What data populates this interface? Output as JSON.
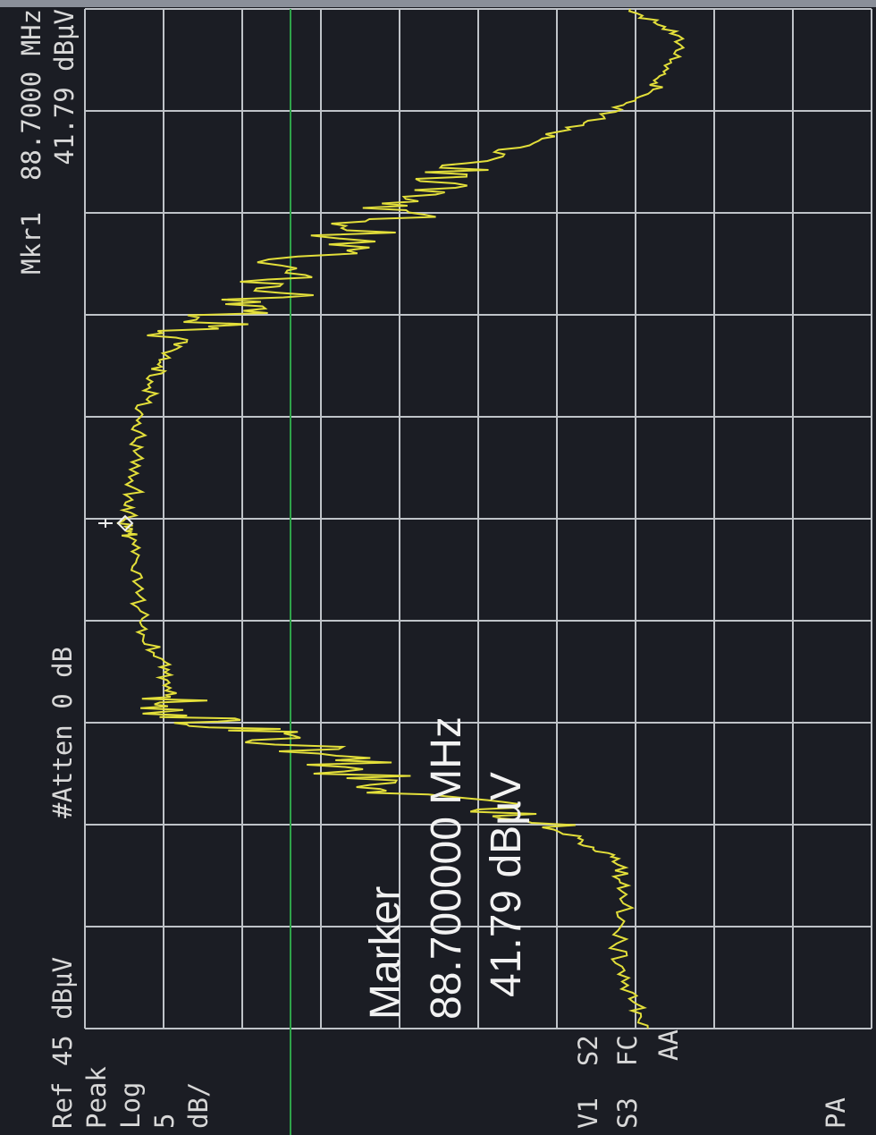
{
  "header": {
    "ref": "Ref 45 dBµV",
    "atten": "#Atten 0 dB",
    "marker_freq": "Mkr1  88.7000 MHz",
    "marker_level": "41.79 dBµV"
  },
  "side": {
    "detector": "Peak",
    "scale": "Log",
    "scale_value": "5",
    "scale_unit": "dB/",
    "trace_1": "V1  S2",
    "trace_2": "S3  FC",
    "trace_3": "AA",
    "preamp": "PA"
  },
  "marker_box": {
    "title": "Marker",
    "frequency": "88.700000 MHz",
    "level": "41.79 dBµV"
  }
}
